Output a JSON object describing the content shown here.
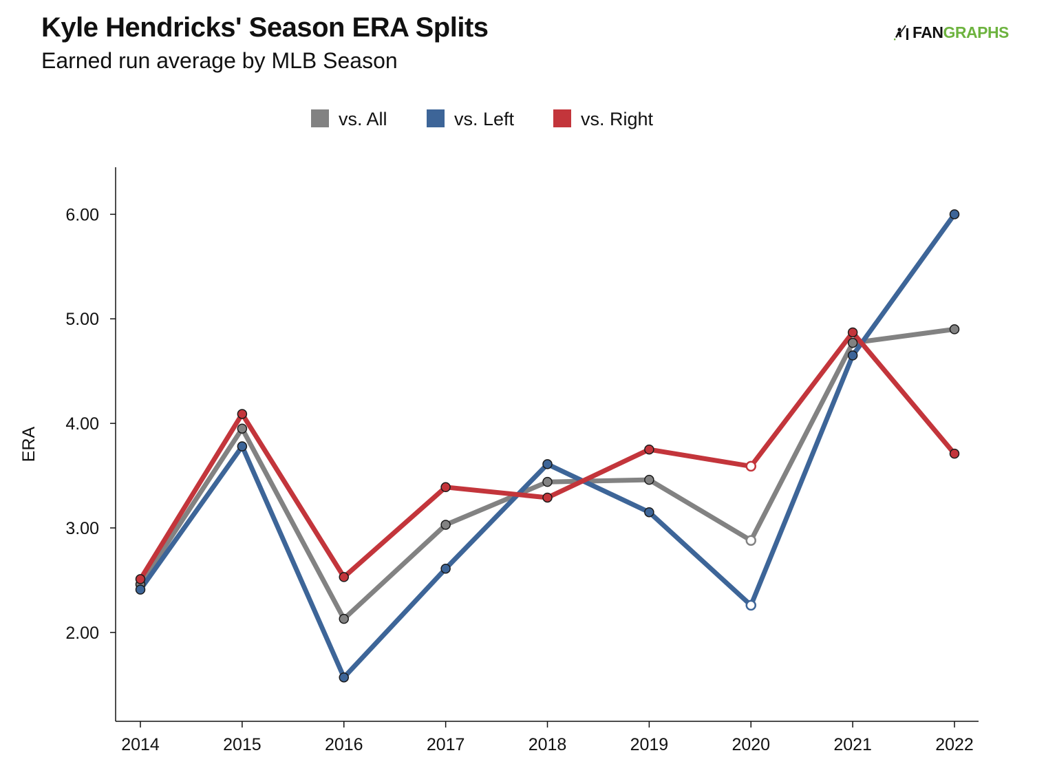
{
  "brand": {
    "prefix": "FAN",
    "suffix": "GRAPHS",
    "icon": "fangraphs-batter-icon",
    "accent": "#6db33f"
  },
  "chart_data": {
    "type": "line",
    "title": "Kyle Hendricks' Season ERA Splits",
    "subtitle": "Earned run average by MLB Season",
    "xlabel": "",
    "ylabel": "ERA",
    "x": [
      "2014",
      "2015",
      "2016",
      "2017",
      "2018",
      "2019",
      "2020",
      "2021",
      "2022"
    ],
    "ylim": [
      1.15,
      6.45
    ],
    "yticks": [
      "2.00",
      "3.00",
      "4.00",
      "5.00",
      "6.00"
    ],
    "legend_position": "top-center",
    "grid": false,
    "hollow_markers_at": [
      "2020"
    ],
    "series": [
      {
        "name": "vs. All",
        "color": "#828282",
        "values": [
          2.46,
          3.95,
          2.13,
          3.03,
          3.44,
          3.46,
          2.88,
          4.77,
          4.9
        ]
      },
      {
        "name": "vs. Left",
        "color": "#3d6598",
        "values": [
          2.41,
          3.78,
          1.57,
          2.61,
          3.61,
          3.15,
          2.26,
          4.65,
          6.0
        ]
      },
      {
        "name": "vs. Right",
        "color": "#c3353b",
        "values": [
          2.51,
          4.09,
          2.53,
          3.39,
          3.29,
          3.75,
          3.59,
          4.87,
          3.71
        ]
      }
    ]
  }
}
